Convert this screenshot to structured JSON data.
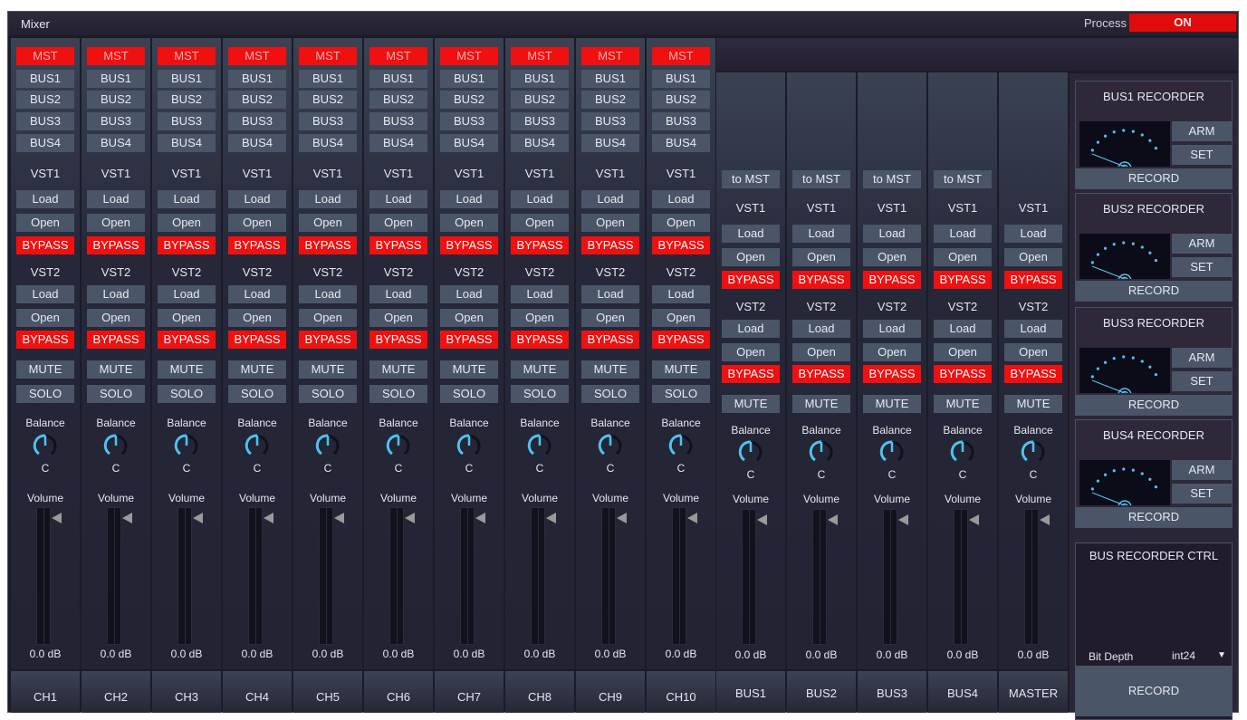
{
  "window": {
    "title": "Mixer",
    "process_label": "Process",
    "process_state": "ON"
  },
  "colors": {
    "active_red": "#f01010",
    "button": "#4b5568",
    "knob_accent": "#4ec3f0"
  },
  "channel_common": {
    "mst": "MST",
    "buses": [
      "BUS1",
      "BUS2",
      "BUS3",
      "BUS4"
    ],
    "vst1": "VST1",
    "vst2": "VST2",
    "load": "Load",
    "open": "Open",
    "bypass": "BYPASS",
    "mute": "MUTE",
    "solo": "SOLO",
    "balance": "Balance",
    "balance_value": "C",
    "volume": "Volume",
    "volume_value": "0.0 dB"
  },
  "channels": [
    {
      "name": "CH1"
    },
    {
      "name": "CH2"
    },
    {
      "name": "CH3"
    },
    {
      "name": "CH4"
    },
    {
      "name": "CH5"
    },
    {
      "name": "CH6"
    },
    {
      "name": "CH7"
    },
    {
      "name": "CH8"
    },
    {
      "name": "CH9"
    },
    {
      "name": "CH10"
    }
  ],
  "bus_common": {
    "to_mst": "to MST"
  },
  "buses": [
    {
      "name": "BUS1",
      "to_mst": true
    },
    {
      "name": "BUS2",
      "to_mst": true
    },
    {
      "name": "BUS3",
      "to_mst": true
    },
    {
      "name": "BUS4",
      "to_mst": true
    },
    {
      "name": "MASTER",
      "to_mst": false
    }
  ],
  "recorders": [
    {
      "title": "BUS1 RECORDER",
      "arm": "ARM",
      "set": "SET",
      "record": "RECORD"
    },
    {
      "title": "BUS2 RECORDER",
      "arm": "ARM",
      "set": "SET",
      "record": "RECORD"
    },
    {
      "title": "BUS3 RECORDER",
      "arm": "ARM",
      "set": "SET",
      "record": "RECORD"
    },
    {
      "title": "BUS4 RECORDER",
      "arm": "ARM",
      "set": "SET",
      "record": "RECORD"
    }
  ],
  "recorder_ctrl": {
    "title": "BUS RECORDER CTRL",
    "bit_depth_label": "Bit Depth",
    "bit_depth_value": "int24",
    "record": "RECORD"
  }
}
